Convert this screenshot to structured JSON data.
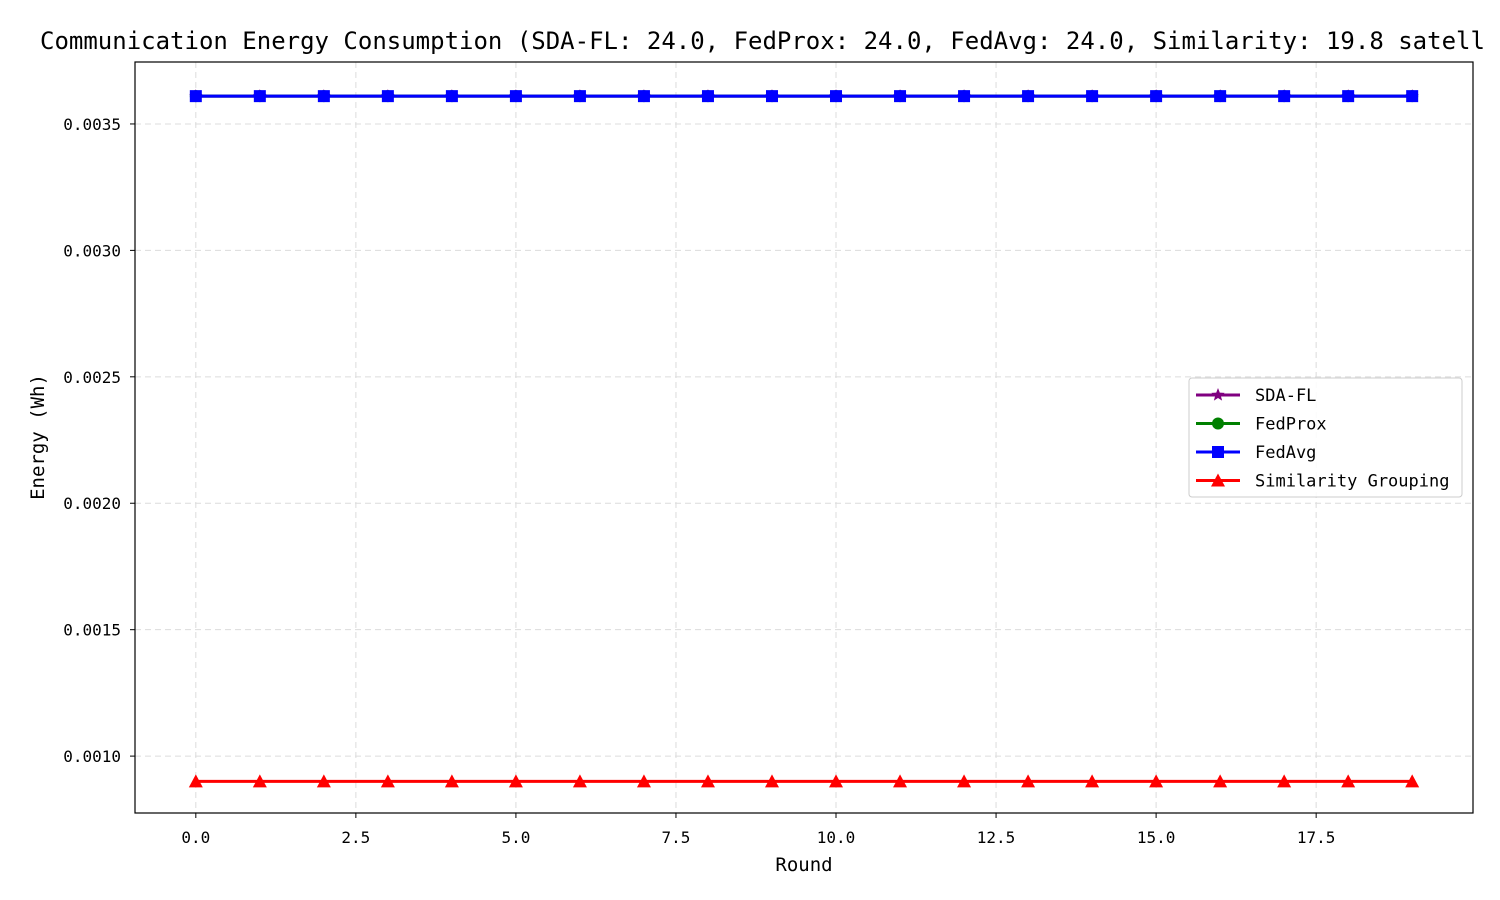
{
  "chart_data": {
    "type": "line",
    "title": "Communication Energy Consumption (SDA-FL: 24.0, FedProx: 24.0, FedAvg: 24.0, Similarity: 19.8 satell",
    "xlabel": "Round",
    "ylabel": "Energy (Wh)",
    "xlim": [
      -0.95,
      19.95
    ],
    "ylim": [
      0.000775,
      0.003745
    ],
    "xticks": [
      0.0,
      2.5,
      5.0,
      7.5,
      10.0,
      12.5,
      15.0,
      17.5
    ],
    "xtick_labels": [
      "0.0",
      "2.5",
      "5.0",
      "7.5",
      "10.0",
      "12.5",
      "15.0",
      "17.5"
    ],
    "yticks": [
      0.001,
      0.0015,
      0.002,
      0.0025,
      0.003,
      0.0035
    ],
    "ytick_labels": [
      "0.0010",
      "0.0015",
      "0.0020",
      "0.0025",
      "0.0030",
      "0.0035"
    ],
    "grid": true,
    "legend_position": "center-right",
    "x": [
      0,
      1,
      2,
      3,
      4,
      5,
      6,
      7,
      8,
      9,
      10,
      11,
      12,
      13,
      14,
      15,
      16,
      17,
      18,
      19
    ],
    "series": [
      {
        "name": "SDA-FL",
        "color": "#800080",
        "marker": "star",
        "values": [
          0.00361,
          0.00361,
          0.00361,
          0.00361,
          0.00361,
          0.00361,
          0.00361,
          0.00361,
          0.00361,
          0.00361,
          0.00361,
          0.00361,
          0.00361,
          0.00361,
          0.00361,
          0.00361,
          0.00361,
          0.00361,
          0.00361,
          0.00361
        ]
      },
      {
        "name": "FedProx",
        "color": "#008000",
        "marker": "circle",
        "values": [
          0.00361,
          0.00361,
          0.00361,
          0.00361,
          0.00361,
          0.00361,
          0.00361,
          0.00361,
          0.00361,
          0.00361,
          0.00361,
          0.00361,
          0.00361,
          0.00361,
          0.00361,
          0.00361,
          0.00361,
          0.00361,
          0.00361,
          0.00361
        ]
      },
      {
        "name": "FedAvg",
        "color": "#0000ff",
        "marker": "square",
        "values": [
          0.00361,
          0.00361,
          0.00361,
          0.00361,
          0.00361,
          0.00361,
          0.00361,
          0.00361,
          0.00361,
          0.00361,
          0.00361,
          0.00361,
          0.00361,
          0.00361,
          0.00361,
          0.00361,
          0.00361,
          0.00361,
          0.00361,
          0.00361
        ]
      },
      {
        "name": "Similarity Grouping",
        "color": "#ff0000",
        "marker": "triangle",
        "values": [
          0.0009,
          0.0009,
          0.0009,
          0.0009,
          0.0009,
          0.0009,
          0.0009,
          0.0009,
          0.0009,
          0.0009,
          0.0009,
          0.0009,
          0.0009,
          0.0009,
          0.0009,
          0.0009,
          0.0009,
          0.0009,
          0.0009,
          0.0009
        ]
      }
    ]
  }
}
